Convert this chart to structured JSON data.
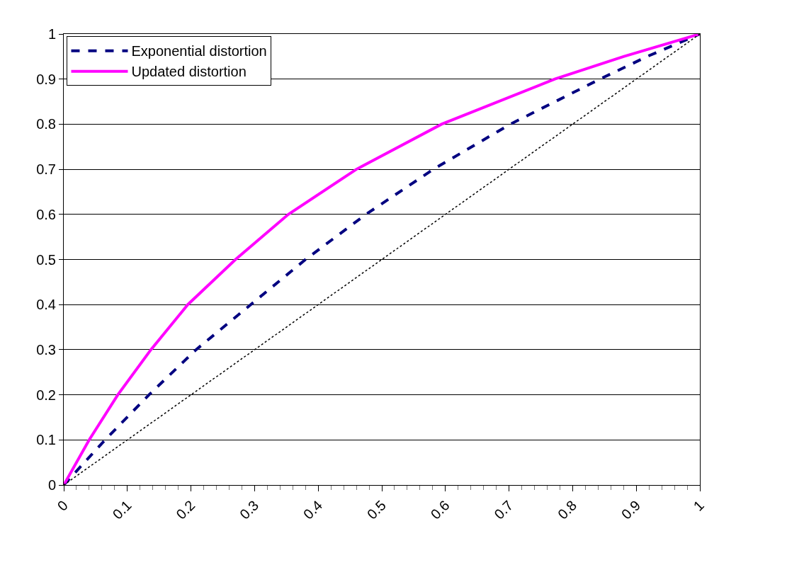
{
  "chart_data": {
    "type": "line",
    "xlim": [
      0,
      1
    ],
    "ylim": [
      0,
      1
    ],
    "xticks": [
      0,
      0.1,
      0.2,
      0.3,
      0.4,
      0.5,
      0.6,
      0.7,
      0.8,
      0.9,
      1
    ],
    "yticks": [
      0,
      0.1,
      0.2,
      0.3,
      0.4,
      0.5,
      0.6,
      0.7,
      0.8,
      0.9,
      1
    ],
    "grid": "y",
    "legend": "top left",
    "marker": "none",
    "series": [
      {
        "name": "Exponential distortion",
        "color": "#000080",
        "line_style": "dashed",
        "x": [
          0,
          0.065,
          0.134,
          0.208,
          0.294,
          0.38,
          0.475,
          0.581,
          0.702,
          0.843,
          0.917,
          1
        ],
        "values": [
          0,
          0.1,
          0.2,
          0.3,
          0.4,
          0.5,
          0.6,
          0.7,
          0.8,
          0.9,
          0.95,
          1
        ]
      },
      {
        "name": "Updated distortion",
        "color": "#ff00ff",
        "line_style": "solid",
        "x": [
          0,
          0.04,
          0.085,
          0.137,
          0.195,
          0.27,
          0.353,
          0.46,
          0.594,
          0.772,
          0.88,
          1
        ],
        "values": [
          0,
          0.1,
          0.2,
          0.3,
          0.4,
          0.5,
          0.6,
          0.7,
          0.8,
          0.9,
          0.95,
          1
        ]
      },
      {
        "color": "#000000",
        "line_style": "dotted",
        "x": [
          0,
          1
        ],
        "values": [
          0,
          1
        ]
      }
    ]
  }
}
